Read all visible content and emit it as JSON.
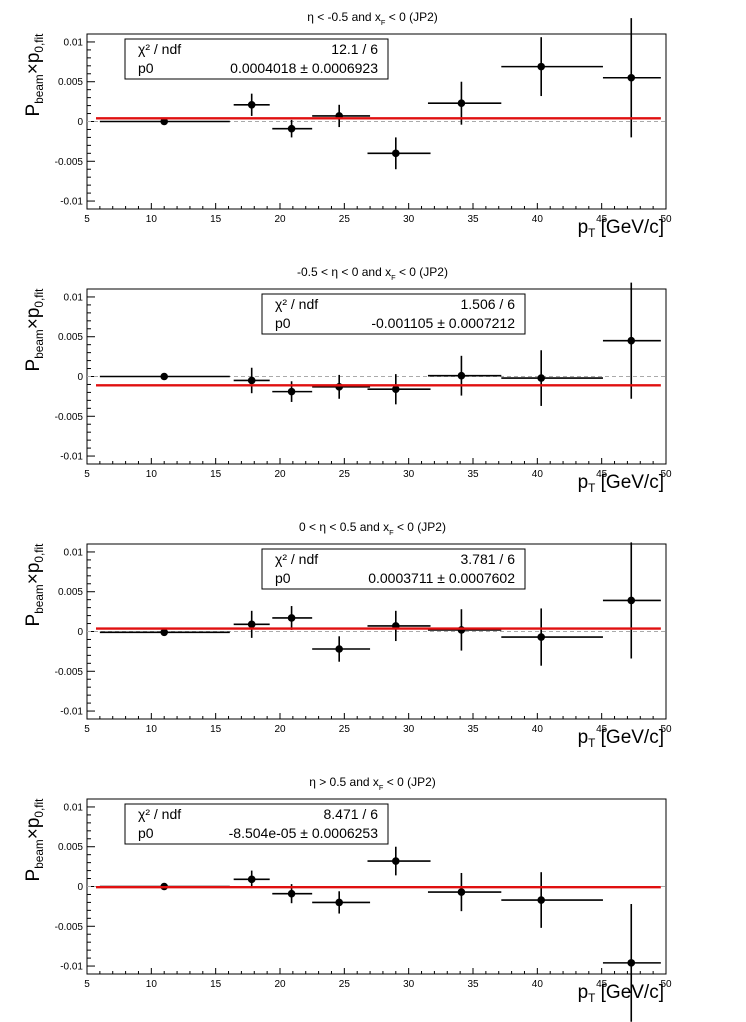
{
  "chart_data": [
    {
      "type": "scatter",
      "title": "η < -0.5 and x_F < 0 (JP2)",
      "title_parts": [
        "η < -0.5 and x",
        "F",
        " < 0 (JP2)"
      ],
      "xlabel_parts": [
        "p",
        "T",
        " [GeV/c]"
      ],
      "ylabel_parts": [
        "P",
        "beam",
        "×p",
        "0,fit"
      ],
      "xlim": [
        5,
        50
      ],
      "ylim": [
        -0.011,
        0.011
      ],
      "xticks": [
        5,
        10,
        15,
        20,
        25,
        30,
        35,
        40,
        45,
        50
      ],
      "yticks": [
        -0.01,
        -0.005,
        0,
        0.005,
        0.01
      ],
      "ytick_labels": [
        "-0.01",
        "-0.005",
        "0",
        "0.005",
        "0.01"
      ],
      "stats": {
        "chi2_label": "χ² / ndf",
        "chi2_value": "12.1 / 6",
        "p0_label": "p0",
        "p0_value": "0.0004018 ± 0.0006923",
        "box_side": "left"
      },
      "fit_value": 0.0004018,
      "points": [
        {
          "x": 11.0,
          "y": 0.0,
          "xerr": [
            6.0,
            16.1
          ],
          "yerr": 0.0
        },
        {
          "x": 17.8,
          "y": 0.0021,
          "xerr": [
            16.4,
            19.2
          ],
          "yerr": 0.0014
        },
        {
          "x": 20.9,
          "y": -0.0009,
          "xerr": [
            19.4,
            22.5
          ],
          "yerr": 0.0011
        },
        {
          "x": 24.6,
          "y": 0.0007,
          "xerr": [
            22.5,
            27.0
          ],
          "yerr": 0.0014
        },
        {
          "x": 29.0,
          "y": -0.004,
          "xerr": [
            26.8,
            31.7
          ],
          "yerr": 0.002
        },
        {
          "x": 34.1,
          "y": 0.0023,
          "xerr": [
            31.5,
            37.2
          ],
          "yerr": 0.0027
        },
        {
          "x": 40.3,
          "y": 0.0069,
          "xerr": [
            37.2,
            45.1
          ],
          "yerr": 0.0037
        },
        {
          "x": 47.3,
          "y": 0.0055,
          "xerr": [
            45.1,
            49.6
          ],
          "yerr": 0.0075
        }
      ]
    },
    {
      "type": "scatter",
      "title": "-0.5 < η < 0 and x_F < 0 (JP2)",
      "title_parts": [
        "-0.5 < η < 0 and x",
        "F",
        " < 0 (JP2)"
      ],
      "xlabel_parts": [
        "p",
        "T",
        " [GeV/c]"
      ],
      "ylabel_parts": [
        "P",
        "beam",
        "×p",
        "0,fit"
      ],
      "xlim": [
        5,
        50
      ],
      "ylim": [
        -0.011,
        0.011
      ],
      "xticks": [
        5,
        10,
        15,
        20,
        25,
        30,
        35,
        40,
        45,
        50
      ],
      "yticks": [
        -0.01,
        -0.005,
        0,
        0.005,
        0.01
      ],
      "ytick_labels": [
        "-0.01",
        "-0.005",
        "0",
        "0.005",
        "0.01"
      ],
      "stats": {
        "chi2_label": "χ² / ndf",
        "chi2_value": "1.506 / 6",
        "p0_label": "p0",
        "p0_value": "-0.001105 ± 0.0007212",
        "box_side": "center"
      },
      "fit_value": -0.001105,
      "points": [
        {
          "x": 11.0,
          "y": 0.0,
          "xerr": [
            6.0,
            16.1
          ],
          "yerr": 0.0
        },
        {
          "x": 17.8,
          "y": -0.0005,
          "xerr": [
            16.4,
            19.2
          ],
          "yerr": 0.0016
        },
        {
          "x": 20.9,
          "y": -0.0019,
          "xerr": [
            19.4,
            22.5
          ],
          "yerr": 0.0013
        },
        {
          "x": 24.6,
          "y": -0.0013,
          "xerr": [
            22.5,
            27.0
          ],
          "yerr": 0.0015
        },
        {
          "x": 29.0,
          "y": -0.0016,
          "xerr": [
            26.8,
            31.7
          ],
          "yerr": 0.0019
        },
        {
          "x": 34.1,
          "y": 0.0001,
          "xerr": [
            31.5,
            37.2
          ],
          "yerr": 0.0025
        },
        {
          "x": 40.3,
          "y": -0.0002,
          "xerr": [
            37.2,
            45.1
          ],
          "yerr": 0.0035
        },
        {
          "x": 47.3,
          "y": 0.0045,
          "xerr": [
            45.1,
            49.6
          ],
          "yerr": 0.0073
        }
      ]
    },
    {
      "type": "scatter",
      "title": "0 < η < 0.5 and x_F < 0 (JP2)",
      "title_parts": [
        "0 < η < 0.5 and x",
        "F",
        " < 0 (JP2)"
      ],
      "xlabel_parts": [
        "p",
        "T",
        " [GeV/c]"
      ],
      "ylabel_parts": [
        "P",
        "beam",
        "×p",
        "0,fit"
      ],
      "xlim": [
        5,
        50
      ],
      "ylim": [
        -0.011,
        0.011
      ],
      "xticks": [
        5,
        10,
        15,
        20,
        25,
        30,
        35,
        40,
        45,
        50
      ],
      "yticks": [
        -0.01,
        -0.005,
        0,
        0.005,
        0.01
      ],
      "ytick_labels": [
        "-0.01",
        "-0.005",
        "0",
        "0.005",
        "0.01"
      ],
      "stats": {
        "chi2_label": "χ² / ndf",
        "chi2_value": "3.781 / 6",
        "p0_label": "p0",
        "p0_value": "0.0003711 ± 0.0007602",
        "box_side": "center"
      },
      "fit_value": 0.0003711,
      "points": [
        {
          "x": 11.0,
          "y": -0.0001,
          "xerr": [
            6.0,
            16.1
          ],
          "yerr": 0.0
        },
        {
          "x": 17.8,
          "y": 0.0009,
          "xerr": [
            16.4,
            19.2
          ],
          "yerr": 0.0017
        },
        {
          "x": 20.9,
          "y": 0.0017,
          "xerr": [
            19.4,
            22.5
          ],
          "yerr": 0.0015
        },
        {
          "x": 24.6,
          "y": -0.0022,
          "xerr": [
            22.5,
            27.0
          ],
          "yerr": 0.0016
        },
        {
          "x": 29.0,
          "y": 0.0007,
          "xerr": [
            26.8,
            31.7
          ],
          "yerr": 0.0019
        },
        {
          "x": 34.1,
          "y": 0.0002,
          "xerr": [
            31.5,
            37.2
          ],
          "yerr": 0.0026
        },
        {
          "x": 40.3,
          "y": -0.0007,
          "xerr": [
            37.2,
            45.1
          ],
          "yerr": 0.0036
        },
        {
          "x": 47.3,
          "y": 0.0039,
          "xerr": [
            45.1,
            49.6
          ],
          "yerr": 0.0073
        }
      ]
    },
    {
      "type": "scatter",
      "title": "η > 0.5 and x_F < 0 (JP2)",
      "title_parts": [
        "η > 0.5 and x",
        "F",
        " < 0 (JP2)"
      ],
      "xlabel_parts": [
        "p",
        "T",
        " [GeV/c]"
      ],
      "ylabel_parts": [
        "P",
        "beam",
        "×p",
        "0,fit"
      ],
      "xlim": [
        5,
        50
      ],
      "ylim": [
        -0.011,
        0.011
      ],
      "xticks": [
        5,
        10,
        15,
        20,
        25,
        30,
        35,
        40,
        45,
        50
      ],
      "yticks": [
        -0.01,
        -0.005,
        0,
        0.005,
        0.01
      ],
      "ytick_labels": [
        "-0.01",
        "-0.005",
        "0",
        "0.005",
        "0.01"
      ],
      "stats": {
        "chi2_label": "χ² / ndf",
        "chi2_value": "8.471 / 6",
        "p0_label": "p0",
        "p0_value": "-8.504e-05 ± 0.0006253",
        "box_side": "left"
      },
      "fit_value": -8.504e-05,
      "points": [
        {
          "x": 11.0,
          "y": 0.0,
          "xerr": [
            6.0,
            16.1
          ],
          "yerr": 0.0
        },
        {
          "x": 17.8,
          "y": 0.0009,
          "xerr": [
            16.4,
            19.2
          ],
          "yerr": 0.0011
        },
        {
          "x": 20.9,
          "y": -0.0009,
          "xerr": [
            19.4,
            22.5
          ],
          "yerr": 0.0012
        },
        {
          "x": 24.6,
          "y": -0.002,
          "xerr": [
            22.5,
            27.0
          ],
          "yerr": 0.0014
        },
        {
          "x": 29.0,
          "y": 0.0032,
          "xerr": [
            26.8,
            31.7
          ],
          "yerr": 0.0018
        },
        {
          "x": 34.1,
          "y": -0.0007,
          "xerr": [
            31.5,
            37.2
          ],
          "yerr": 0.0024
        },
        {
          "x": 40.3,
          "y": -0.0017,
          "xerr": [
            37.2,
            45.1
          ],
          "yerr": 0.0035
        },
        {
          "x": 47.3,
          "y": -0.0096,
          "xerr": [
            45.1,
            49.6
          ],
          "yerr": 0.0074
        }
      ]
    }
  ],
  "colors": {
    "fit_line": "#e01010",
    "zero_line": "#aaaaaa",
    "markers": "#000000"
  }
}
